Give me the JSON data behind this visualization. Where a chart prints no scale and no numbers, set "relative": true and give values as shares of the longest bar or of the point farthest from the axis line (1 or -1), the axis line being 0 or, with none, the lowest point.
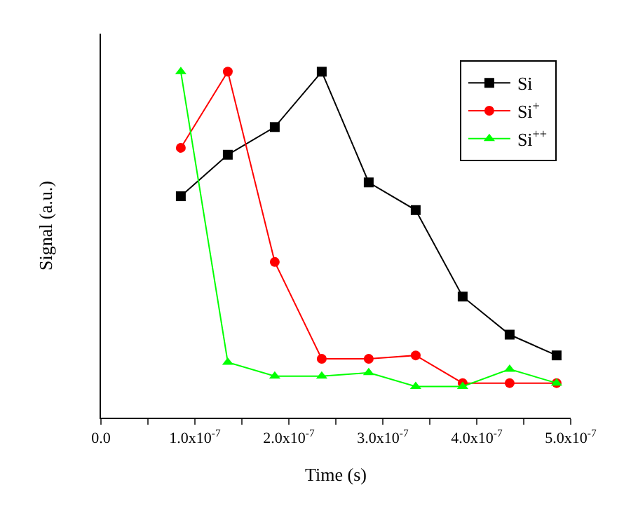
{
  "chart_data": {
    "type": "line",
    "relative": true,
    "xlabel": "Time (s)",
    "ylabel": "Signal (a.u.)",
    "x": [
      8.5e-08,
      1.35e-07,
      1.85e-07,
      2.35e-07,
      2.85e-07,
      3.35e-07,
      3.85e-07,
      4.35e-07,
      4.85e-07
    ],
    "xlim": [
      0,
      5e-07
    ],
    "xticks": [
      {
        "value": 0,
        "label": "0.0"
      },
      {
        "value": 5e-08,
        "label": null
      },
      {
        "value": 1e-07,
        "label": "1.0x10$^{-7}$"
      },
      {
        "value": 1.5e-07,
        "label": null
      },
      {
        "value": 2e-07,
        "label": "2.0x10$^{-7}$"
      },
      {
        "value": 2.5e-07,
        "label": null
      },
      {
        "value": 3e-07,
        "label": "3.0x10$^{-7}$"
      },
      {
        "value": 3.5e-07,
        "label": null
      },
      {
        "value": 4e-07,
        "label": "4.0x10$^{-7}$"
      },
      {
        "value": 4.5e-07,
        "label": null
      },
      {
        "value": 5e-07,
        "label": "5.0x10$^{-7}$"
      }
    ],
    "series": [
      {
        "name": "Si",
        "color": "#000000",
        "marker": "square",
        "values": [
          0.64,
          0.76,
          0.84,
          1,
          0.68,
          0.6,
          0.35,
          0.24,
          0.18
        ]
      },
      {
        "name": "Si$^{+}$",
        "color": "#ff0000",
        "marker": "circle",
        "values": [
          0.78,
          1,
          0.45,
          0.17,
          0.17,
          0.18,
          0.1,
          0.1,
          0.1
        ]
      },
      {
        "name": "Si$^{++}$",
        "color": "#00ff00",
        "marker": "triangle",
        "values": [
          1,
          0.16,
          0.12,
          0.12,
          0.13,
          0.09,
          0.09,
          0.14,
          0.1
        ]
      }
    ],
    "legend": "top right",
    "line_style": "solid"
  }
}
